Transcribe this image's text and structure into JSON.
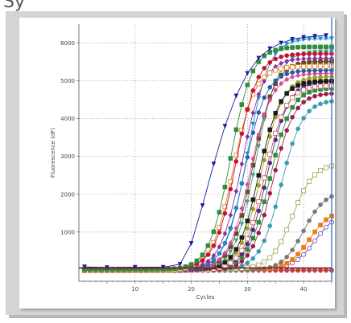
{
  "header": {
    "partial_text": "Sy"
  },
  "chart_data": {
    "type": "line",
    "title": "",
    "xlabel": "Cycles",
    "ylabel": "Fluorescence (dF)",
    "xlim": [
      0,
      45
    ],
    "ylim": [
      -300,
      6500
    ],
    "xticks": [
      10,
      20,
      30,
      40
    ],
    "yticks": [
      1000,
      2000,
      3000,
      4000,
      5000,
      6000
    ],
    "grid": "dotted",
    "threshold": 50,
    "threshold_color": "#8b1a1a",
    "cursor_cycle": 45,
    "cursor_color": "#3a7bd5",
    "series": [
      {
        "color": "#1a1aa0",
        "marker": "triangle-down",
        "ct": 22.5,
        "plateau": 6200,
        "x": [
          1,
          5,
          10,
          15,
          18,
          20,
          22,
          24,
          26,
          28,
          30,
          32,
          34,
          36,
          38,
          40,
          42,
          44
        ],
        "y": [
          80,
          60,
          70,
          70,
          150,
          700,
          1700,
          2800,
          3800,
          4600,
          5200,
          5600,
          5850,
          6000,
          6100,
          6150,
          6180,
          6200
        ]
      },
      {
        "color": "#2e8b3e",
        "marker": "square",
        "ct": 27,
        "plateau": 5900
      },
      {
        "color": "#c8102e",
        "marker": "circle",
        "ct": 28,
        "plateau": 5700
      },
      {
        "color": "#e87d1e",
        "marker": "square-open",
        "ct": 27.5,
        "plateau": 5400
      },
      {
        "color": "#8b2fa0",
        "marker": "diamond",
        "ct": 29,
        "plateau": 5600
      },
      {
        "color": "#1e90c8",
        "marker": "triangle-down",
        "ct": 30,
        "plateau": 6100
      },
      {
        "color": "#2a5aa8",
        "marker": "circle",
        "ct": 29.5,
        "plateau": 5300
      },
      {
        "color": "#d44a9a",
        "marker": "diamond",
        "ct": 30.5,
        "plateau": 5200
      },
      {
        "color": "#6a4a1e",
        "marker": "square",
        "ct": 31,
        "plateau": 5500
      },
      {
        "color": "#3aa58a",
        "marker": "triangle-down",
        "ct": 31.5,
        "plateau": 5800
      },
      {
        "color": "#1a1a1a",
        "marker": "square",
        "ct": 32,
        "plateau": 5000
      },
      {
        "color": "#a0a020",
        "marker": "circle",
        "ct": 32.5,
        "plateau": 5100
      },
      {
        "color": "#c85a5a",
        "marker": "square-open",
        "ct": 33,
        "plateau": 4900
      },
      {
        "color": "#4a2a8a",
        "marker": "circle",
        "ct": 33.5,
        "plateau": 5000
      },
      {
        "color": "#2e8b3e",
        "marker": "square",
        "ct": 34,
        "plateau": 4800
      },
      {
        "color": "#a01a4a",
        "marker": "circle",
        "ct": 34.5,
        "plateau": 4700
      },
      {
        "color": "#3a9ab0",
        "marker": "circle",
        "ct": 36,
        "plateau": 4500
      },
      {
        "color": "#9aaa4a",
        "marker": "square-open",
        "ct": 38,
        "plateau": 2800
      },
      {
        "color": "#777777",
        "marker": "circle",
        "ct": 40,
        "plateau": 2100
      },
      {
        "color": "#f07a10",
        "marker": "square",
        "ct": 41,
        "plateau": 1600
      },
      {
        "color": "#6a4ab0",
        "marker": "circle-open",
        "ct": 42,
        "plateau": 1500
      },
      {
        "color": "#c04040",
        "marker": "circle",
        "ct": 45,
        "plateau": 0
      },
      {
        "color": "#8a8a8a",
        "marker": "circle",
        "ct": 45,
        "plateau": 0
      }
    ]
  }
}
